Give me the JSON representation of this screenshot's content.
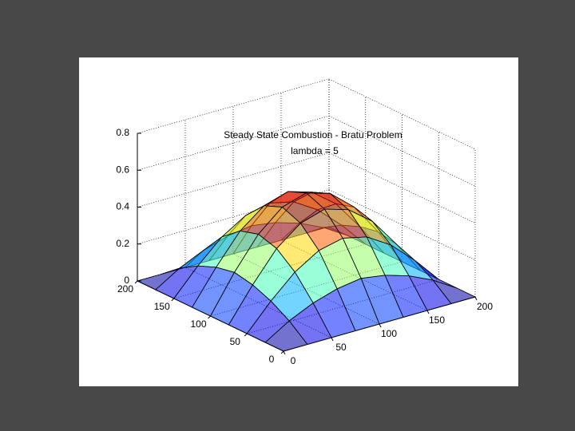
{
  "chart_data": {
    "type": "surface",
    "title": "Steady State Combustion - Bratu Problem",
    "subtitle": "lambda = 5",
    "x": [
      0,
      25,
      50,
      75,
      100,
      125,
      150,
      175,
      200
    ],
    "y": [
      0,
      25,
      50,
      75,
      100,
      125,
      150,
      175,
      200
    ],
    "z": [
      [
        0,
        0,
        0,
        0,
        0,
        0,
        0,
        0,
        0
      ],
      [
        0,
        0.08,
        0.14,
        0.18,
        0.2,
        0.18,
        0.14,
        0.08,
        0
      ],
      [
        0,
        0.14,
        0.26,
        0.34,
        0.37,
        0.34,
        0.26,
        0.14,
        0
      ],
      [
        0,
        0.18,
        0.34,
        0.44,
        0.48,
        0.44,
        0.34,
        0.18,
        0
      ],
      [
        0,
        0.2,
        0.37,
        0.48,
        0.52,
        0.48,
        0.37,
        0.2,
        0
      ],
      [
        0,
        0.18,
        0.34,
        0.44,
        0.48,
        0.44,
        0.34,
        0.18,
        0
      ],
      [
        0,
        0.14,
        0.26,
        0.34,
        0.37,
        0.34,
        0.26,
        0.14,
        0
      ],
      [
        0,
        0.08,
        0.14,
        0.18,
        0.2,
        0.18,
        0.14,
        0.08,
        0
      ],
      [
        0,
        0,
        0,
        0,
        0,
        0,
        0,
        0,
        0
      ]
    ],
    "xlim": [
      0,
      200
    ],
    "ylim": [
      0,
      200
    ],
    "zlim": [
      0,
      0.8
    ],
    "xticks": [
      0,
      50,
      100,
      150,
      200
    ],
    "yticks": [
      0,
      50,
      100,
      150,
      200
    ],
    "zticks": [
      0,
      0.2,
      0.4,
      0.6,
      0.8
    ],
    "grid": true,
    "colormap": "jet",
    "edgecolor": "#000000"
  }
}
